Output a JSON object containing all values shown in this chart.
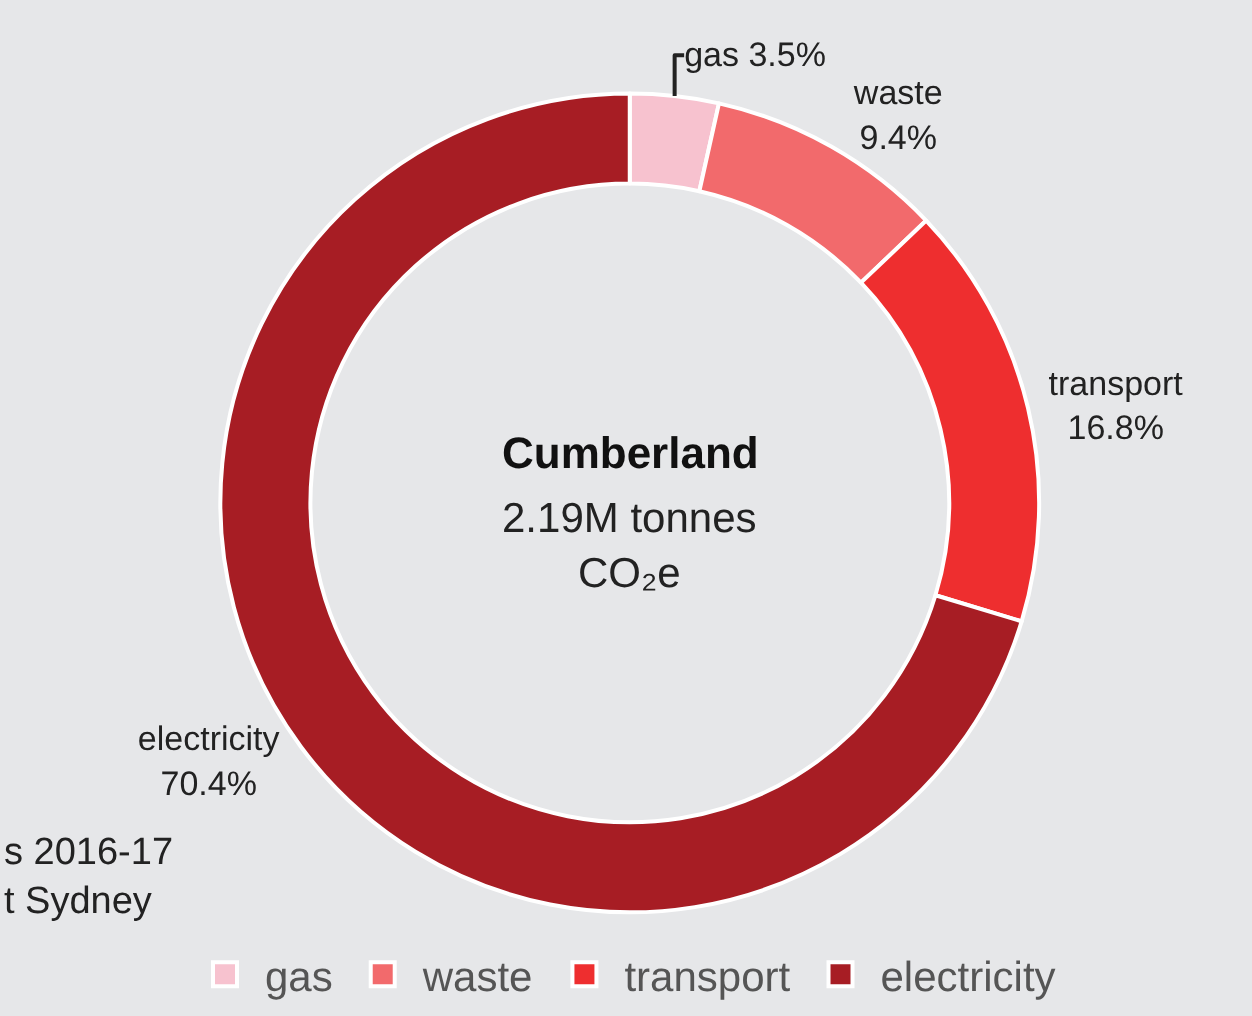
{
  "chart_data": {
    "type": "donut",
    "title": "Cumberland",
    "subtitle": "2.19M tonnes\nCO₂e",
    "categories": [
      "gas",
      "waste",
      "transport",
      "electricity"
    ],
    "values": [
      3.5,
      9.4,
      16.8,
      70.4
    ],
    "colors": [
      "#f7c2cf",
      "#f26a6c",
      "#ee2e2f",
      "#a71d24"
    ],
    "value_labels": [
      "3.5%",
      "9.4%",
      "16.8%",
      "70.4%"
    ],
    "legend": "bottom",
    "annotations": [
      "s 2016-17\nt Sydney"
    ]
  }
}
